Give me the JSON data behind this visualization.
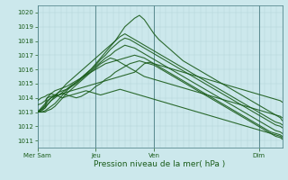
{
  "bg_color": "#cce8ec",
  "grid_color": "#b0d4d8",
  "line_color": "#1a5c1a",
  "xlabel": "Pression niveau de la mer( hPa )",
  "ylim": [
    1010.5,
    1020.5
  ],
  "yticks": [
    1011,
    1012,
    1013,
    1014,
    1015,
    1016,
    1017,
    1018,
    1019,
    1020
  ],
  "day_labels": [
    "Mer Sam",
    "Jeu",
    "Ven",
    "Dim"
  ],
  "day_positions": [
    0,
    60,
    120,
    228
  ],
  "total_steps": 252,
  "series": [
    {
      "x": [
        0,
        4,
        8,
        10,
        14,
        18,
        22,
        26,
        30,
        35,
        40,
        45,
        50,
        55,
        60,
        65,
        70,
        75,
        80,
        85,
        90,
        95,
        100,
        105,
        110,
        115,
        120,
        125,
        130,
        135,
        140,
        145,
        150,
        155,
        160,
        165,
        170,
        175,
        180,
        185,
        190,
        195,
        200,
        205,
        210,
        215,
        220,
        225,
        230,
        235,
        240,
        245,
        250,
        252
      ],
      "y": [
        1013.0,
        1013.2,
        1013.5,
        1013.8,
        1014.0,
        1014.1,
        1014.2,
        1014.3,
        1014.2,
        1014.1,
        1014.0,
        1014.1,
        1014.3,
        1014.5,
        1014.8,
        1015.0,
        1015.3,
        1015.5,
        1015.8,
        1016.0,
        1016.2,
        1016.4,
        1016.5,
        1016.6,
        1016.5,
        1016.4,
        1016.3,
        1016.1,
        1015.9,
        1015.7,
        1015.5,
        1015.3,
        1015.1,
        1014.9,
        1014.7,
        1014.5,
        1014.3,
        1014.1,
        1013.9,
        1013.7,
        1013.5,
        1013.3,
        1013.1,
        1012.9,
        1012.7,
        1012.5,
        1012.3,
        1012.1,
        1011.9,
        1011.7,
        1011.5,
        1011.3,
        1011.2,
        1011.1
      ]
    },
    {
      "x": [
        0,
        4,
        8,
        10,
        14,
        18,
        22,
        26,
        30,
        35,
        40,
        45,
        50,
        55,
        60,
        65,
        70,
        75,
        80,
        85,
        90,
        95,
        100,
        105,
        110,
        115,
        120,
        125,
        130,
        135,
        140,
        145,
        150,
        155,
        160,
        165,
        170,
        175,
        180,
        185,
        190,
        195,
        200,
        205,
        210,
        215,
        220,
        225,
        230,
        235,
        240,
        245,
        250,
        252
      ],
      "y": [
        1013.0,
        1013.3,
        1013.6,
        1014.0,
        1014.3,
        1014.5,
        1014.6,
        1014.7,
        1014.8,
        1015.0,
        1015.2,
        1015.4,
        1015.6,
        1015.8,
        1016.0,
        1016.2,
        1016.4,
        1016.5,
        1016.6,
        1016.7,
        1016.8,
        1016.9,
        1017.0,
        1016.9,
        1016.8,
        1016.6,
        1016.4,
        1016.2,
        1016.0,
        1015.8,
        1015.6,
        1015.4,
        1015.2,
        1015.0,
        1014.8,
        1014.6,
        1014.4,
        1014.2,
        1014.0,
        1013.8,
        1013.6,
        1013.4,
        1013.2,
        1013.0,
        1012.8,
        1012.6,
        1012.4,
        1012.2,
        1012.0,
        1011.8,
        1011.6,
        1011.5,
        1011.4,
        1011.3
      ]
    },
    {
      "x": [
        0,
        4,
        8,
        10,
        14,
        18,
        22,
        26,
        30,
        35,
        40,
        45,
        50,
        55,
        60,
        65,
        70,
        75,
        80,
        85,
        90,
        95,
        100,
        105,
        110,
        115,
        120,
        125,
        130,
        135,
        140,
        145,
        150,
        155,
        160,
        165,
        170,
        175,
        180,
        185,
        190,
        195,
        200,
        205,
        210,
        215,
        220,
        225,
        230,
        235,
        240,
        245,
        250,
        252
      ],
      "y": [
        1013.0,
        1013.2,
        1013.4,
        1013.7,
        1014.0,
        1014.2,
        1014.4,
        1014.5,
        1014.6,
        1014.8,
        1015.0,
        1015.3,
        1015.6,
        1015.9,
        1016.2,
        1016.5,
        1016.8,
        1017.0,
        1017.3,
        1017.5,
        1017.7,
        1017.6,
        1017.5,
        1017.3,
        1017.1,
        1016.9,
        1016.7,
        1016.5,
        1016.3,
        1016.1,
        1015.9,
        1015.7,
        1015.5,
        1015.3,
        1015.1,
        1014.9,
        1014.7,
        1014.5,
        1014.3,
        1014.1,
        1013.9,
        1013.7,
        1013.5,
        1013.3,
        1013.1,
        1012.9,
        1012.7,
        1012.5,
        1012.3,
        1012.1,
        1011.9,
        1011.7,
        1011.6,
        1011.5
      ]
    },
    {
      "x": [
        0,
        4,
        8,
        10,
        14,
        18,
        22,
        26,
        30,
        35,
        40,
        45,
        50,
        55,
        60,
        65,
        70,
        75,
        80,
        85,
        90,
        95,
        100,
        105,
        110,
        115,
        120,
        125,
        130,
        135,
        140,
        145,
        150,
        155,
        160,
        165,
        170,
        175,
        180,
        185,
        190,
        195,
        200,
        205,
        210,
        215,
        220,
        225,
        230,
        235,
        240,
        245,
        250,
        252
      ],
      "y": [
        1013.0,
        1013.1,
        1013.3,
        1013.5,
        1013.8,
        1014.0,
        1014.2,
        1014.4,
        1014.6,
        1014.9,
        1015.1,
        1015.4,
        1015.7,
        1016.0,
        1016.3,
        1016.7,
        1017.0,
        1017.4,
        1017.7,
        1018.0,
        1018.2,
        1018.1,
        1017.9,
        1017.7,
        1017.5,
        1017.3,
        1017.1,
        1016.9,
        1016.7,
        1016.5,
        1016.3,
        1016.1,
        1015.9,
        1015.7,
        1015.5,
        1015.3,
        1015.1,
        1014.9,
        1014.7,
        1014.5,
        1014.3,
        1014.1,
        1013.9,
        1013.7,
        1013.5,
        1013.3,
        1013.1,
        1012.9,
        1012.7,
        1012.5,
        1012.3,
        1012.1,
        1012.0,
        1011.9
      ]
    },
    {
      "x": [
        0,
        4,
        8,
        10,
        14,
        18,
        22,
        26,
        30,
        35,
        40,
        45,
        50,
        55,
        60,
        65,
        70,
        75,
        80,
        85,
        90,
        95,
        100,
        105,
        110,
        115,
        120,
        125,
        130,
        135,
        140,
        145,
        150,
        155,
        160,
        165,
        170,
        175,
        180,
        185,
        190,
        195,
        200,
        205,
        210,
        215,
        220,
        225,
        230,
        235,
        240,
        245,
        250,
        252
      ],
      "y": [
        1013.0,
        1013.0,
        1013.1,
        1013.2,
        1013.4,
        1013.6,
        1013.9,
        1014.2,
        1014.5,
        1014.8,
        1015.1,
        1015.4,
        1015.7,
        1016.0,
        1016.4,
        1016.8,
        1017.2,
        1017.6,
        1018.0,
        1018.5,
        1019.0,
        1019.3,
        1019.6,
        1019.8,
        1019.5,
        1019.0,
        1018.5,
        1018.1,
        1017.8,
        1017.5,
        1017.2,
        1016.9,
        1016.6,
        1016.4,
        1016.2,
        1016.0,
        1015.8,
        1015.6,
        1015.4,
        1015.2,
        1015.0,
        1014.8,
        1014.6,
        1014.4,
        1014.2,
        1014.0,
        1013.8,
        1013.6,
        1013.4,
        1013.2,
        1013.0,
        1012.8,
        1012.6,
        1012.4
      ]
    },
    {
      "x": [
        0,
        4,
        8,
        10,
        14,
        18,
        22,
        26,
        30,
        35,
        40,
        45,
        50,
        55,
        60,
        65,
        70,
        75,
        80,
        85,
        90,
        95,
        100,
        105,
        110,
        115,
        120,
        125,
        130,
        135,
        140,
        145,
        150,
        155,
        160,
        165,
        170,
        175,
        180,
        185,
        190,
        195,
        200,
        205,
        210,
        215,
        220,
        225,
        230,
        235,
        240,
        245,
        250,
        252
      ],
      "y": [
        1013.0,
        1013.1,
        1013.3,
        1013.5,
        1013.8,
        1014.1,
        1014.4,
        1014.7,
        1015.0,
        1015.3,
        1015.6,
        1015.9,
        1016.2,
        1016.5,
        1016.8,
        1017.1,
        1017.4,
        1017.7,
        1018.0,
        1018.3,
        1018.5,
        1018.3,
        1018.1,
        1017.9,
        1017.7,
        1017.5,
        1017.3,
        1017.1,
        1016.9,
        1016.7,
        1016.5,
        1016.3,
        1016.1,
        1015.9,
        1015.7,
        1015.5,
        1015.3,
        1015.1,
        1014.9,
        1014.7,
        1014.5,
        1014.3,
        1014.1,
        1013.9,
        1013.7,
        1013.5,
        1013.3,
        1013.1,
        1012.9,
        1012.7,
        1012.5,
        1012.3,
        1012.2,
        1012.1
      ]
    },
    {
      "x": [
        0,
        4,
        8,
        10,
        14,
        18,
        22,
        26,
        30,
        35,
        40,
        45,
        50,
        55,
        60,
        65,
        70,
        75,
        80,
        85,
        90,
        95,
        100,
        105,
        110,
        115,
        120,
        125,
        130,
        135,
        140,
        145,
        150,
        155,
        160,
        165,
        170,
        175,
        180,
        185,
        190,
        195,
        200,
        205,
        210,
        215,
        220,
        225,
        230,
        235,
        240,
        245,
        250,
        252
      ],
      "y": [
        1013.5,
        1013.6,
        1013.8,
        1014.0,
        1014.1,
        1014.2,
        1014.2,
        1014.3,
        1014.4,
        1014.5,
        1014.6,
        1014.7,
        1014.8,
        1014.9,
        1015.0,
        1015.1,
        1015.2,
        1015.3,
        1015.4,
        1015.5,
        1015.6,
        1015.7,
        1015.8,
        1016.1,
        1016.4,
        1016.5,
        1016.4,
        1016.3,
        1016.2,
        1016.1,
        1016.0,
        1015.9,
        1015.8,
        1015.7,
        1015.6,
        1015.5,
        1015.4,
        1015.3,
        1015.2,
        1015.1,
        1015.0,
        1014.9,
        1014.8,
        1014.7,
        1014.6,
        1014.5,
        1014.4,
        1014.3,
        1014.2,
        1014.1,
        1014.0,
        1013.9,
        1013.8,
        1013.7
      ]
    },
    {
      "x": [
        0,
        4,
        8,
        10,
        14,
        18,
        22,
        26,
        30,
        35,
        40,
        45,
        50,
        55,
        60,
        65,
        70,
        75,
        80,
        85,
        90,
        95,
        100,
        105,
        110,
        115,
        120,
        125,
        130,
        135,
        140,
        145,
        150,
        155,
        160,
        165,
        170,
        175,
        180,
        185,
        190,
        195,
        200,
        205,
        210,
        215,
        220,
        225,
        230,
        235,
        240,
        245,
        250,
        252
      ],
      "y": [
        1013.8,
        1014.0,
        1014.1,
        1014.2,
        1014.3,
        1014.2,
        1014.1,
        1014.0,
        1014.1,
        1014.2,
        1014.3,
        1014.4,
        1014.5,
        1014.4,
        1014.3,
        1014.2,
        1014.3,
        1014.4,
        1014.5,
        1014.6,
        1014.5,
        1014.4,
        1014.3,
        1014.2,
        1014.1,
        1014.0,
        1013.9,
        1013.8,
        1013.7,
        1013.6,
        1013.5,
        1013.4,
        1013.3,
        1013.2,
        1013.1,
        1013.0,
        1012.9,
        1012.8,
        1012.7,
        1012.6,
        1012.5,
        1012.4,
        1012.3,
        1012.2,
        1012.1,
        1012.0,
        1011.9,
        1011.8,
        1011.7,
        1011.6,
        1011.5,
        1011.4,
        1011.3,
        1011.2
      ]
    },
    {
      "x": [
        0,
        4,
        8,
        10,
        14,
        18,
        22,
        26,
        30,
        35,
        40,
        45,
        50,
        55,
        60,
        65,
        70,
        75,
        80,
        85,
        90,
        95,
        100,
        105,
        110,
        115,
        120,
        125,
        130,
        135,
        140,
        145,
        150,
        155,
        160,
        165,
        170,
        175,
        180,
        185,
        190,
        195,
        200,
        205,
        210,
        215,
        220,
        225,
        230,
        235,
        240,
        245,
        250,
        252
      ],
      "y": [
        1013.0,
        1013.0,
        1013.0,
        1013.1,
        1013.2,
        1013.4,
        1013.7,
        1014.0,
        1014.3,
        1014.6,
        1014.9,
        1015.2,
        1015.5,
        1015.8,
        1016.1,
        1016.4,
        1016.6,
        1016.8,
        1016.7,
        1016.5,
        1016.3,
        1016.1,
        1015.9,
        1015.7,
        1015.5,
        1015.4,
        1015.3,
        1015.2,
        1015.1,
        1015.0,
        1014.9,
        1014.8,
        1014.7,
        1014.6,
        1014.5,
        1014.4,
        1014.3,
        1014.2,
        1014.1,
        1014.0,
        1013.9,
        1013.8,
        1013.7,
        1013.6,
        1013.5,
        1013.4,
        1013.3,
        1013.2,
        1013.1,
        1013.0,
        1012.9,
        1012.8,
        1012.7,
        1012.6
      ]
    }
  ]
}
